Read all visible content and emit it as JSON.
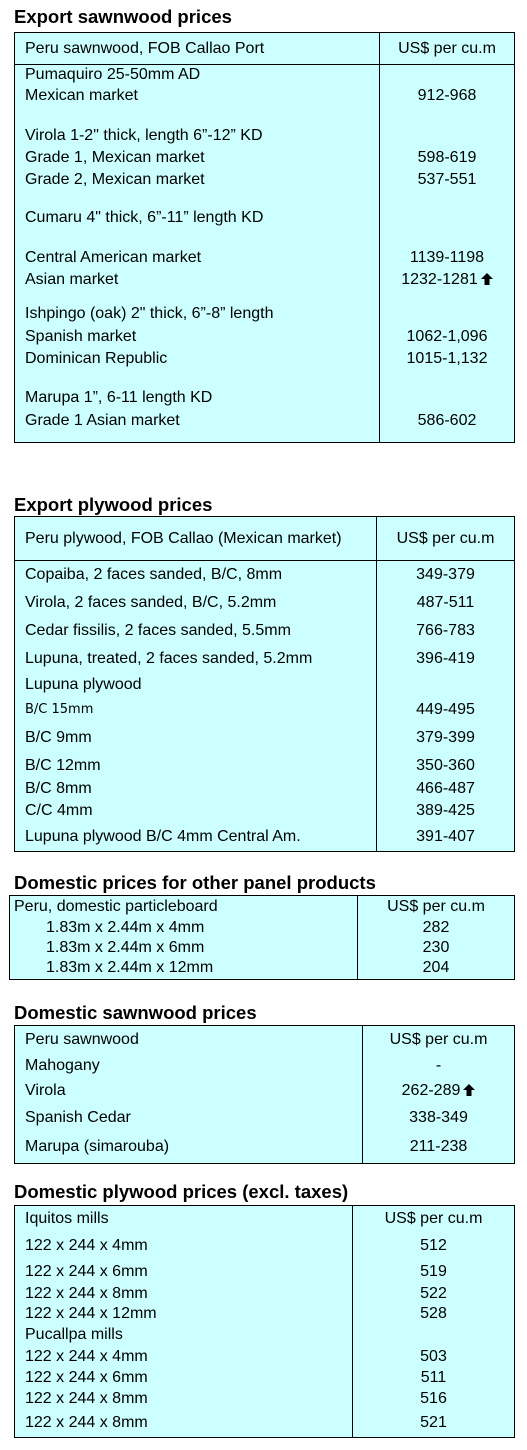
{
  "export_sawnwood": {
    "title": "Export sawnwood prices",
    "header_label": "Peru sawnwood, FOB Callao Port",
    "header_unit": "US$ per cu.m",
    "rows": [
      {
        "label": "Pumaquiro 25-50mm AD",
        "value": ""
      },
      {
        "label": "Mexican market",
        "value": "912-968"
      },
      {
        "label": "Virola  1-2\" thick, length  6”-12” KD",
        "value": ""
      },
      {
        "label": "Grade 1, Mexican market",
        "value": "598-619"
      },
      {
        "label": "Grade 2, Mexican market",
        "value": "537-551"
      },
      {
        "label": "Cumaru 4\" thick, 6”-11” length KD",
        "value": ""
      },
      {
        "label": "Central American market",
        "value": "1139-1198"
      },
      {
        "label": "Asian market",
        "value": "1232-1281"
      },
      {
        "label": "Ishpingo (oak) 2\" thick, 6”-8” length",
        "value": ""
      },
      {
        "label": "Spanish market",
        "value": "1062-1,096"
      },
      {
        "label": "Dominican Republic",
        "value": "1015-1,132"
      },
      {
        "label": "Marupa  1”, 6-11 length KD",
        "value": ""
      },
      {
        "label": "Grade 1 Asian market",
        "value": "586-602"
      }
    ]
  },
  "export_plywood": {
    "title": "Export plywood prices",
    "header_label": "Peru plywood, FOB Callao (Mexican market)",
    "header_unit": "US$ per cu.m",
    "rows": [
      {
        "label": "Copaiba, 2 faces sanded, B/C, 8mm",
        "value": "349-379"
      },
      {
        "label": "Virola, 2 faces sanded, B/C, 5.2mm",
        "value": "487-511"
      },
      {
        "label": "Cedar fissilis, 2 faces sanded, 5.5mm",
        "value": "766-783"
      },
      {
        "label": "Lupuna, treated, 2 faces sanded, 5.2mm",
        "value": "396-419"
      },
      {
        "label": "Lupuna plywood",
        "value": ""
      },
      {
        "label": "B/C 15mm",
        "value": "449-495"
      },
      {
        "label": "B/C 9mm",
        "value": "379-399"
      },
      {
        "label": "B/C 12mm",
        "value": "350-360"
      },
      {
        "label": "B/C 8mm",
        "value": "466-487"
      },
      {
        "label": "C/C 4mm",
        "value": "389-425"
      },
      {
        "label": "Lupuna plywood B/C 4mm Central Am.",
        "value": "391-407"
      }
    ]
  },
  "domestic_panel": {
    "title": "Domestic prices for other panel products",
    "header_label": "Peru, domestic particleboard",
    "header_unit": "US$ per cu.m",
    "rows": [
      {
        "label": "1.83m x 2.44m x 4mm",
        "value": "282"
      },
      {
        "label": "1.83m x 2.44m x 6mm",
        "value": "230"
      },
      {
        "label": "1.83m x 2.44m x 12mm",
        "value": "204"
      }
    ]
  },
  "domestic_sawnwood": {
    "title": "Domestic sawnwood prices",
    "header_label": "Peru sawnwood",
    "header_unit": "US$ per cu.m",
    "rows": [
      {
        "label": "Mahogany",
        "value": "-"
      },
      {
        "label": "Virola",
        "value": "262-289"
      },
      {
        "label": "Spanish Cedar",
        "value": "338-349"
      },
      {
        "label": "Marupa (simarouba)",
        "value": "211-238"
      }
    ]
  },
  "domestic_plywood": {
    "title": "Domestic plywood prices (excl. taxes)",
    "header_label": "Iquitos mills",
    "header_unit": "US$ per cu.m",
    "rows": [
      {
        "label": "122 x 244 x 4mm",
        "value": "512"
      },
      {
        "label": "122 x 244 x 6mm",
        "value": "519"
      },
      {
        "label": "122 x 244 x 8mm",
        "value": "522"
      },
      {
        "label": "122 x 244 x 12mm",
        "value": "528"
      },
      {
        "label": "Pucallpa mills",
        "value": ""
      },
      {
        "label": "122 x 244 x 4mm",
        "value": "503"
      },
      {
        "label": "122 x 244 x 6mm",
        "value": "511"
      },
      {
        "label": "122 x 244 x 8mm",
        "value": "516"
      },
      {
        "label": "122 x 244 x 8mm",
        "value": "521"
      }
    ]
  },
  "icons": {
    "up": "up-arrow-icon"
  }
}
